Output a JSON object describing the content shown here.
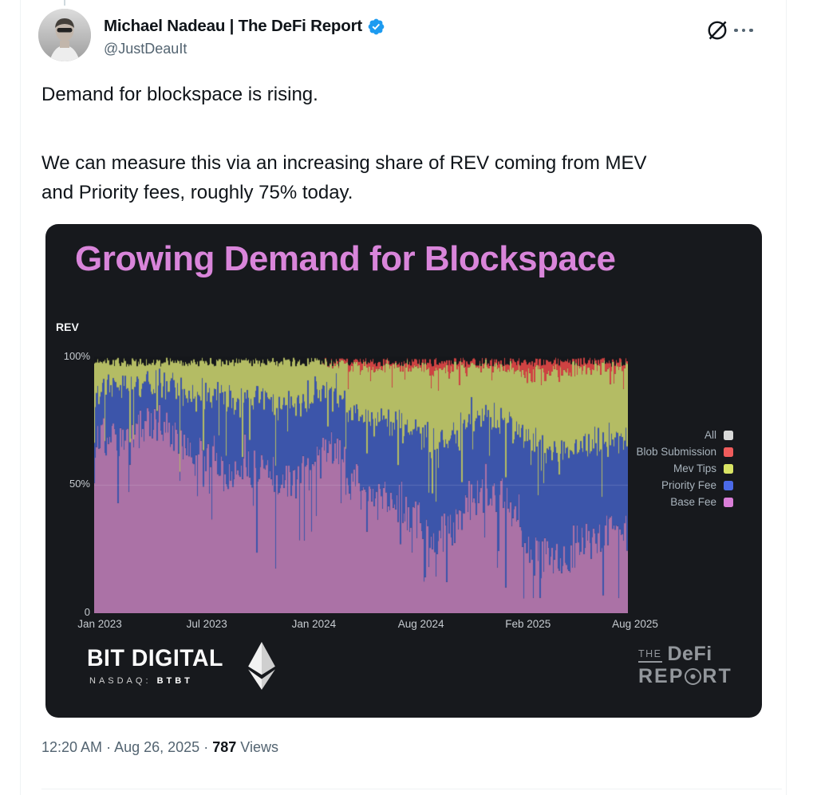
{
  "tweet": {
    "author": {
      "name": "Michael Nadeau | The DeFi Report",
      "handle": "@JustDeauIt"
    },
    "body": {
      "line1": "Demand for blockspace is rising.",
      "line2": "We can measure this via an increasing share of REV coming from MEV",
      "line3": "and Priority fees, roughly 75% today."
    },
    "footer": {
      "time": "12:20 AM",
      "date": "Aug 26, 2025",
      "views_count": "787",
      "views_label": "Views",
      "separator": "·"
    }
  },
  "chart_card": {
    "title": "Growing Demand for Blockspace",
    "title_color": "#d985da",
    "background": "#17191d",
    "y_axis_label": "REV",
    "y_ticks": [
      "100%",
      "50%",
      "0"
    ],
    "x_ticks": [
      "Jan 2023",
      "Jul 2023",
      "Jan 2024",
      "Aug 2024",
      "Feb 2025",
      "Aug 2025"
    ],
    "legend": [
      {
        "label": "All",
        "color": "#d9d9d9"
      },
      {
        "label": "Blob Submission",
        "color": "#f05c5c"
      },
      {
        "label": "Mev Tips",
        "color": "#d9e464"
      },
      {
        "label": "Priority Fee",
        "color": "#4b6ae8"
      },
      {
        "label": "Base Fee",
        "color": "#da7ed8"
      }
    ],
    "branding_left": {
      "name": "BIT DIGITAL",
      "ticker_label": "NASDAQ:",
      "ticker_symbol": "BTBT"
    },
    "branding_right": {
      "the": "THE",
      "defi": "DeFi",
      "report_pre": "REP",
      "report_post": "RT"
    }
  },
  "chart_data": {
    "type": "bar",
    "stacked": true,
    "normalized": "percent_of_total_REV",
    "title": "Growing Demand for Blockspace",
    "ylabel": "REV",
    "ylim": [
      0,
      100
    ],
    "legend_position": "right",
    "x_range": [
      "Jan 2023",
      "Aug 2025"
    ],
    "categories": [
      "2023-01",
      "2023-02",
      "2023-03",
      "2023-04",
      "2023-05",
      "2023-06",
      "2023-07",
      "2023-08",
      "2023-09",
      "2023-10",
      "2023-11",
      "2023-12",
      "2024-01",
      "2024-02",
      "2024-03",
      "2024-04",
      "2024-05",
      "2024-06",
      "2024-07",
      "2024-08",
      "2024-09",
      "2024-10",
      "2024-11",
      "2024-12",
      "2025-01",
      "2025-02",
      "2025-03",
      "2025-04",
      "2025-05",
      "2025-06",
      "2025-07",
      "2025-08"
    ],
    "series": [
      {
        "name": "Base Fee",
        "color": "#ab72a6",
        "values": [
          66,
          68,
          70,
          73,
          74,
          67,
          60,
          62,
          55,
          58,
          54,
          50,
          55,
          60,
          64,
          50,
          46,
          45,
          40,
          36,
          30,
          35,
          46,
          50,
          45,
          30,
          22,
          20,
          25,
          30,
          34,
          30
        ]
      },
      {
        "name": "Priority Fee",
        "color": "#3c55aa",
        "values": [
          21,
          19,
          18,
          16,
          15,
          20,
          24,
          23,
          27,
          25,
          28,
          30,
          27,
          24,
          22,
          28,
          31,
          30,
          33,
          35,
          36,
          33,
          30,
          28,
          30,
          38,
          41,
          41,
          38,
          35,
          33,
          35
        ]
      },
      {
        "name": "Mev Tips",
        "color": "#b4bc64",
        "values": [
          10,
          10,
          9,
          8,
          8,
          10,
          13,
          12,
          15,
          14,
          15,
          17,
          15,
          13,
          10,
          18,
          19,
          20,
          22,
          24,
          28,
          26,
          20,
          18,
          20,
          26,
          30,
          32,
          30,
          29,
          27,
          29
        ]
      },
      {
        "name": "Blob Submission",
        "color": "#cf4242",
        "values": [
          0,
          0,
          0,
          0,
          0,
          0,
          0,
          0,
          0,
          0,
          0,
          0,
          0,
          0,
          0.5,
          2,
          2.5,
          1.5,
          1.5,
          2,
          2.5,
          2,
          1.5,
          1.5,
          2,
          4,
          5,
          4,
          3,
          2.5,
          2,
          2.5
        ]
      }
    ],
    "note": "Daily 100% stacked bars; values are approximate monthly shares (%) read from the chart"
  }
}
